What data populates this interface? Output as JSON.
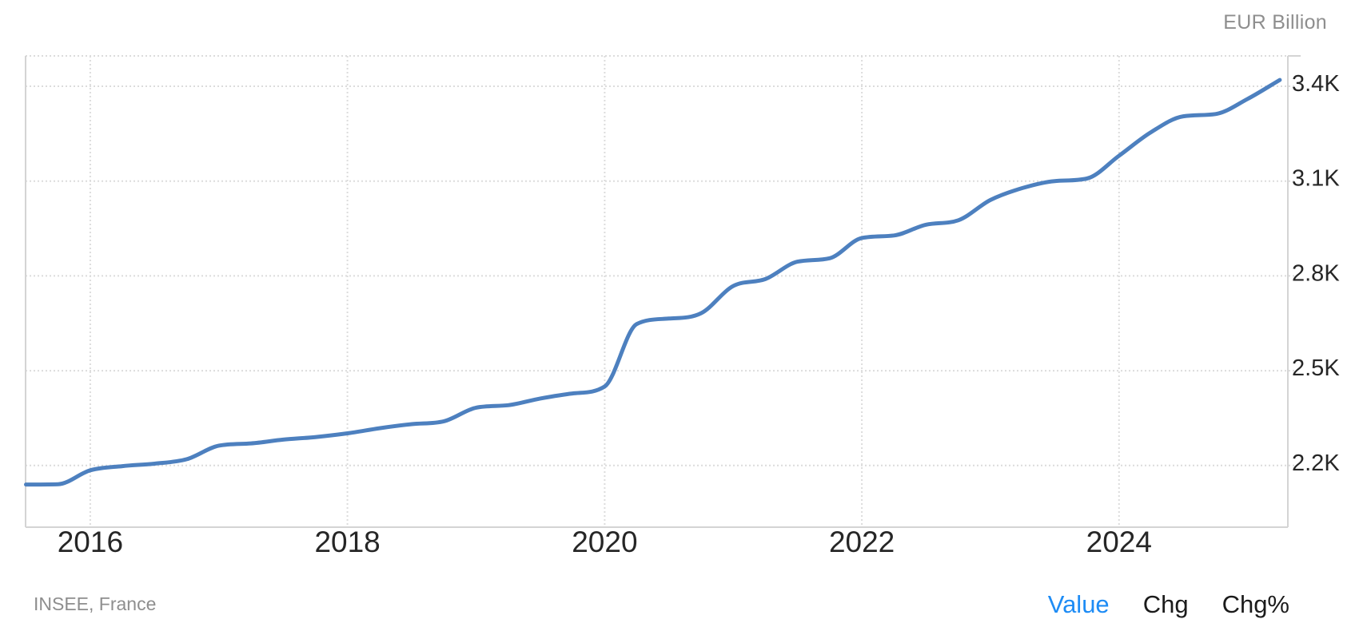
{
  "header": {
    "unit": "EUR Billion"
  },
  "footer": {
    "source": "INSEE, France",
    "modes": [
      {
        "label": "Value",
        "active": true
      },
      {
        "label": "Chg",
        "active": false
      },
      {
        "label": "Chg%",
        "active": false
      }
    ]
  },
  "colors": {
    "accent": "#1e8cf5",
    "line": "#4d80bf",
    "grid": "#dcdcdc",
    "border": "#d4d4d4",
    "axis_text": "#262626",
    "muted_text": "#8e8e8e"
  },
  "chart_data": {
    "type": "line",
    "title": "",
    "unit": "EUR Billion",
    "source": "INSEE, France",
    "series_name": "Value",
    "x_label_note": "x values are decimal years, quarterly data",
    "x": [
      2015.5,
      2015.75,
      2016.0,
      2016.25,
      2016.5,
      2016.75,
      2017.0,
      2017.25,
      2017.5,
      2017.75,
      2018.0,
      2018.25,
      2018.5,
      2018.75,
      2019.0,
      2019.25,
      2019.5,
      2019.75,
      2020.0,
      2020.25,
      2020.5,
      2020.75,
      2021.0,
      2021.25,
      2021.5,
      2021.75,
      2022.0,
      2022.25,
      2022.5,
      2022.75,
      2023.0,
      2023.25,
      2023.5,
      2023.75,
      2024.0,
      2024.25,
      2024.5,
      2024.75,
      2025.0,
      2025.25
    ],
    "values": [
      2140,
      2141,
      2185,
      2198,
      2206,
      2220,
      2263,
      2270,
      2282,
      2290,
      2302,
      2318,
      2331,
      2340,
      2383,
      2391,
      2412,
      2428,
      2450,
      2648,
      2665,
      2682,
      2768,
      2790,
      2845,
      2856,
      2920,
      2928,
      2962,
      2976,
      3040,
      3078,
      3100,
      3108,
      3180,
      3255,
      3305,
      3312,
      3360,
      3420
    ],
    "x_tick_values": [
      2016,
      2018,
      2020,
      2022,
      2024
    ],
    "x_tick_labels": [
      "2016",
      "2018",
      "2020",
      "2022",
      "2024"
    ],
    "y_tick_values": [
      2200,
      2500,
      2800,
      3100,
      3400
    ],
    "y_tick_labels": [
      "2.2K",
      "2.5K",
      "2.8K",
      "3.1K",
      "3.4K"
    ],
    "xlim": [
      2015.497,
      2025.313
    ],
    "ylim": [
      2005,
      3496
    ],
    "grid": "dotted",
    "legend_position": "none"
  }
}
